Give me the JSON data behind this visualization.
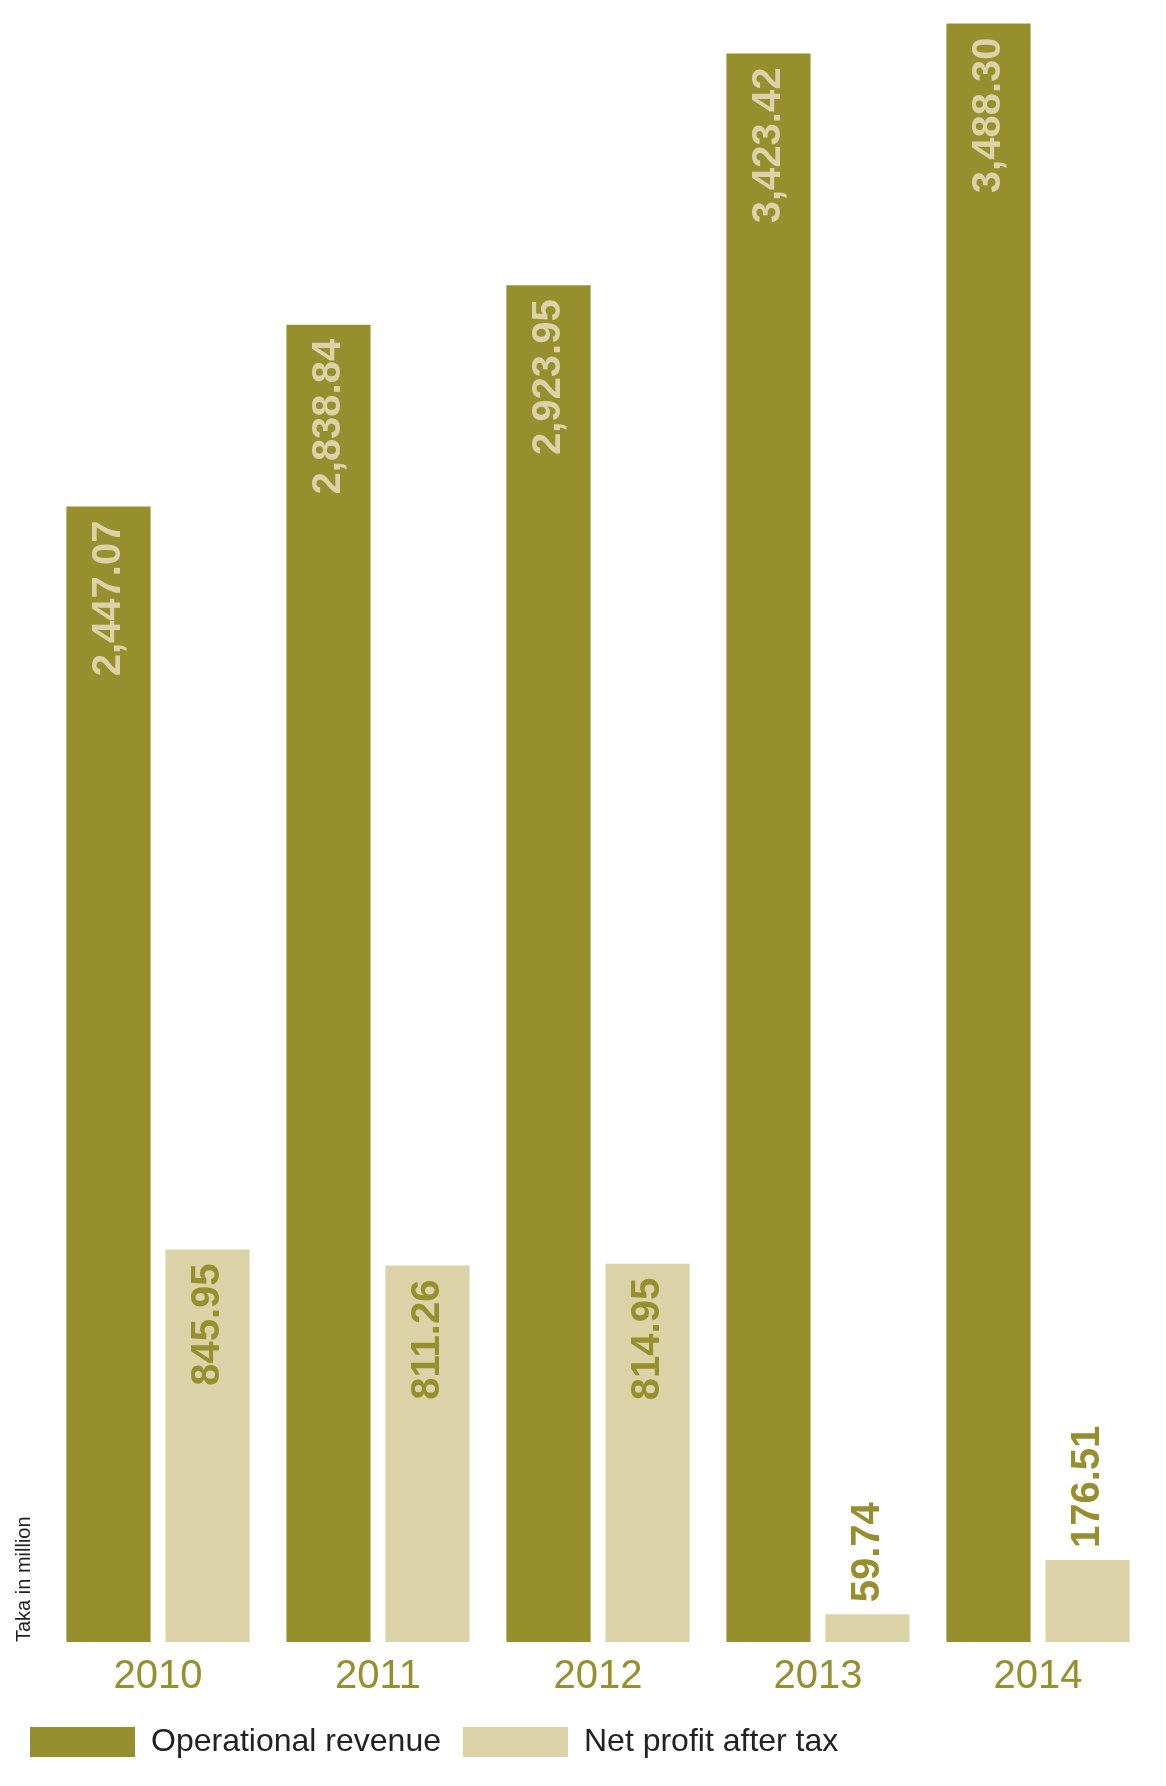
{
  "chart_data": {
    "type": "bar",
    "ylabel": "Taka in million",
    "categories": [
      "2010",
      "2011",
      "2012",
      "2013",
      "2014"
    ],
    "series": [
      {
        "name": "Operational revenue",
        "color": "#978e2e",
        "values": [
          2447.07,
          2838.84,
          2923.95,
          3423.42,
          3488.3
        ],
        "value_labels": [
          "2,447.07",
          "2,838.84",
          "2,923.95",
          "3,423.42",
          "3,488.30"
        ]
      },
      {
        "name": "Net profit after tax",
        "color": "#dbd3a7",
        "values": [
          845.95,
          811.26,
          814.95,
          59.74,
          176.51
        ],
        "value_labels": [
          "845.95",
          "811.26",
          "814.95",
          "59.74",
          "176.51"
        ]
      }
    ],
    "tick_labels": "x",
    "grid": false,
    "legend": "bottom"
  }
}
